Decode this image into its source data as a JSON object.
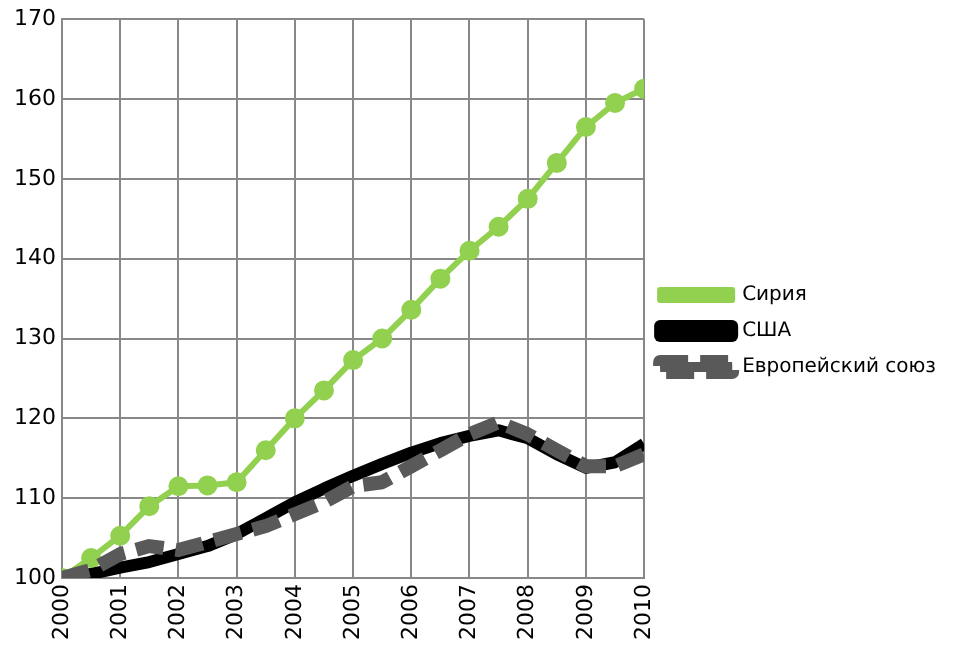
{
  "chart_data": {
    "type": "line",
    "xlim": [
      2000,
      2010
    ],
    "xticks": [
      2000,
      2001,
      2002,
      2003,
      2004,
      2005,
      2006,
      2007,
      2008,
      2009,
      2010
    ],
    "ylim": [
      100,
      170
    ],
    "yticks": [
      100,
      110,
      120,
      130,
      140,
      150,
      160,
      170
    ],
    "grid": true,
    "legend": "right",
    "series": [
      {
        "name": "Сирия",
        "color": "#92d050",
        "marker": "circle",
        "line_style": "solid",
        "x": [
          2000,
          2000.5,
          2001,
          2001.5,
          2002,
          2002.5,
          2003,
          2003.5,
          2004,
          2004.5,
          2005,
          2005.5,
          2006,
          2006.5,
          2007,
          2007.5,
          2008,
          2008.5,
          2009,
          2009.5,
          2010
        ],
        "values": [
          100,
          102.5,
          105.3,
          109,
          111.5,
          111.6,
          112,
          116,
          120,
          123.5,
          127.3,
          130,
          133.6,
          137.5,
          141,
          144,
          147.5,
          152,
          156.5,
          159.5,
          161.3
        ]
      },
      {
        "name": "США",
        "color": "#000000",
        "marker": "none",
        "line_style": "solid",
        "x": [
          2000,
          2000.5,
          2001,
          2001.5,
          2002,
          2002.5,
          2003,
          2003.5,
          2004,
          2004.5,
          2005,
          2005.5,
          2006,
          2006.5,
          2007,
          2007.5,
          2008,
          2008.5,
          2009,
          2009.5,
          2010
        ],
        "values": [
          100,
          100.5,
          101.3,
          102,
          103,
          104,
          105.5,
          107.5,
          109.5,
          111.2,
          112.8,
          114.3,
          115.7,
          116.9,
          117.8,
          118.5,
          117.5,
          115.5,
          113.8,
          114.5,
          116.8
        ]
      },
      {
        "name": "Европейский союз",
        "color": "#595959",
        "marker": "none",
        "line_style": "dashed",
        "x": [
          2000,
          2000.5,
          2001,
          2001.5,
          2002,
          2002.5,
          2003,
          2003.5,
          2004,
          2004.5,
          2005,
          2005.5,
          2006,
          2006.5,
          2007,
          2007.5,
          2008,
          2008.5,
          2009,
          2009.5,
          2010
        ],
        "values": [
          100,
          101,
          103,
          104,
          103.5,
          104.5,
          105.5,
          106.5,
          108,
          109.5,
          111.5,
          112,
          114,
          116,
          118,
          119.5,
          118,
          116,
          114,
          114,
          115.5
        ]
      }
    ]
  }
}
